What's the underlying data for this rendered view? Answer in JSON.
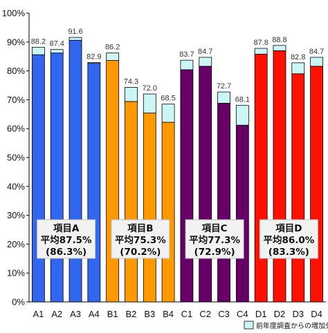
{
  "chart_data": {
    "type": "bar",
    "stacked": true,
    "categories": [
      "A1",
      "A2",
      "A3",
      "A4",
      "B1",
      "B2",
      "B3",
      "B4",
      "C1",
      "C2",
      "C3",
      "C4",
      "D1",
      "D2",
      "D3",
      "D4"
    ],
    "base_values": [
      85.6,
      86.2,
      90.6,
      82.6,
      83.6,
      69.4,
      65.4,
      62.2,
      80.4,
      81.6,
      68.8,
      61.2,
      85.8,
      87.0,
      79.0,
      81.6
    ],
    "totals": [
      88.2,
      87.4,
      91.6,
      82.9,
      86.2,
      74.3,
      72.0,
      68.5,
      83.7,
      84.7,
      72.7,
      68.1,
      87.8,
      88.8,
      82.8,
      84.7
    ],
    "total_labels": [
      "88.2",
      "87.4",
      "91.6",
      "82.9",
      "86.2",
      "74.3",
      "72.0",
      "68.5",
      "83.7",
      "84.7",
      "72.7",
      "68.1",
      "87.8",
      "88.8",
      "82.8",
      "84.7"
    ],
    "increase_series_name": "前年度調査からの増加分",
    "increase_color": "#ccf6f6",
    "group_colors": [
      "#3366ee",
      "#ff9900",
      "#660066",
      "#ff1100"
    ],
    "y_ticks": [
      "0%",
      "10%",
      "20%",
      "30%",
      "40%",
      "50%",
      "60%",
      "70%",
      "80%",
      "90%",
      "100%"
    ],
    "ylim": [
      0,
      100
    ],
    "grid": false,
    "legend_position": "bottom-right",
    "groups": [
      {
        "title": "項目A",
        "avg": "平均87.5%",
        "prev": "(86.3%)"
      },
      {
        "title": "項目B",
        "avg": "平均75.3%",
        "prev": "(70.2%)"
      },
      {
        "title": "項目C",
        "avg": "平均77.3%",
        "prev": "(72.9%)"
      },
      {
        "title": "項目D",
        "avg": "平均86.0%",
        "prev": "(83.3%)"
      }
    ]
  }
}
